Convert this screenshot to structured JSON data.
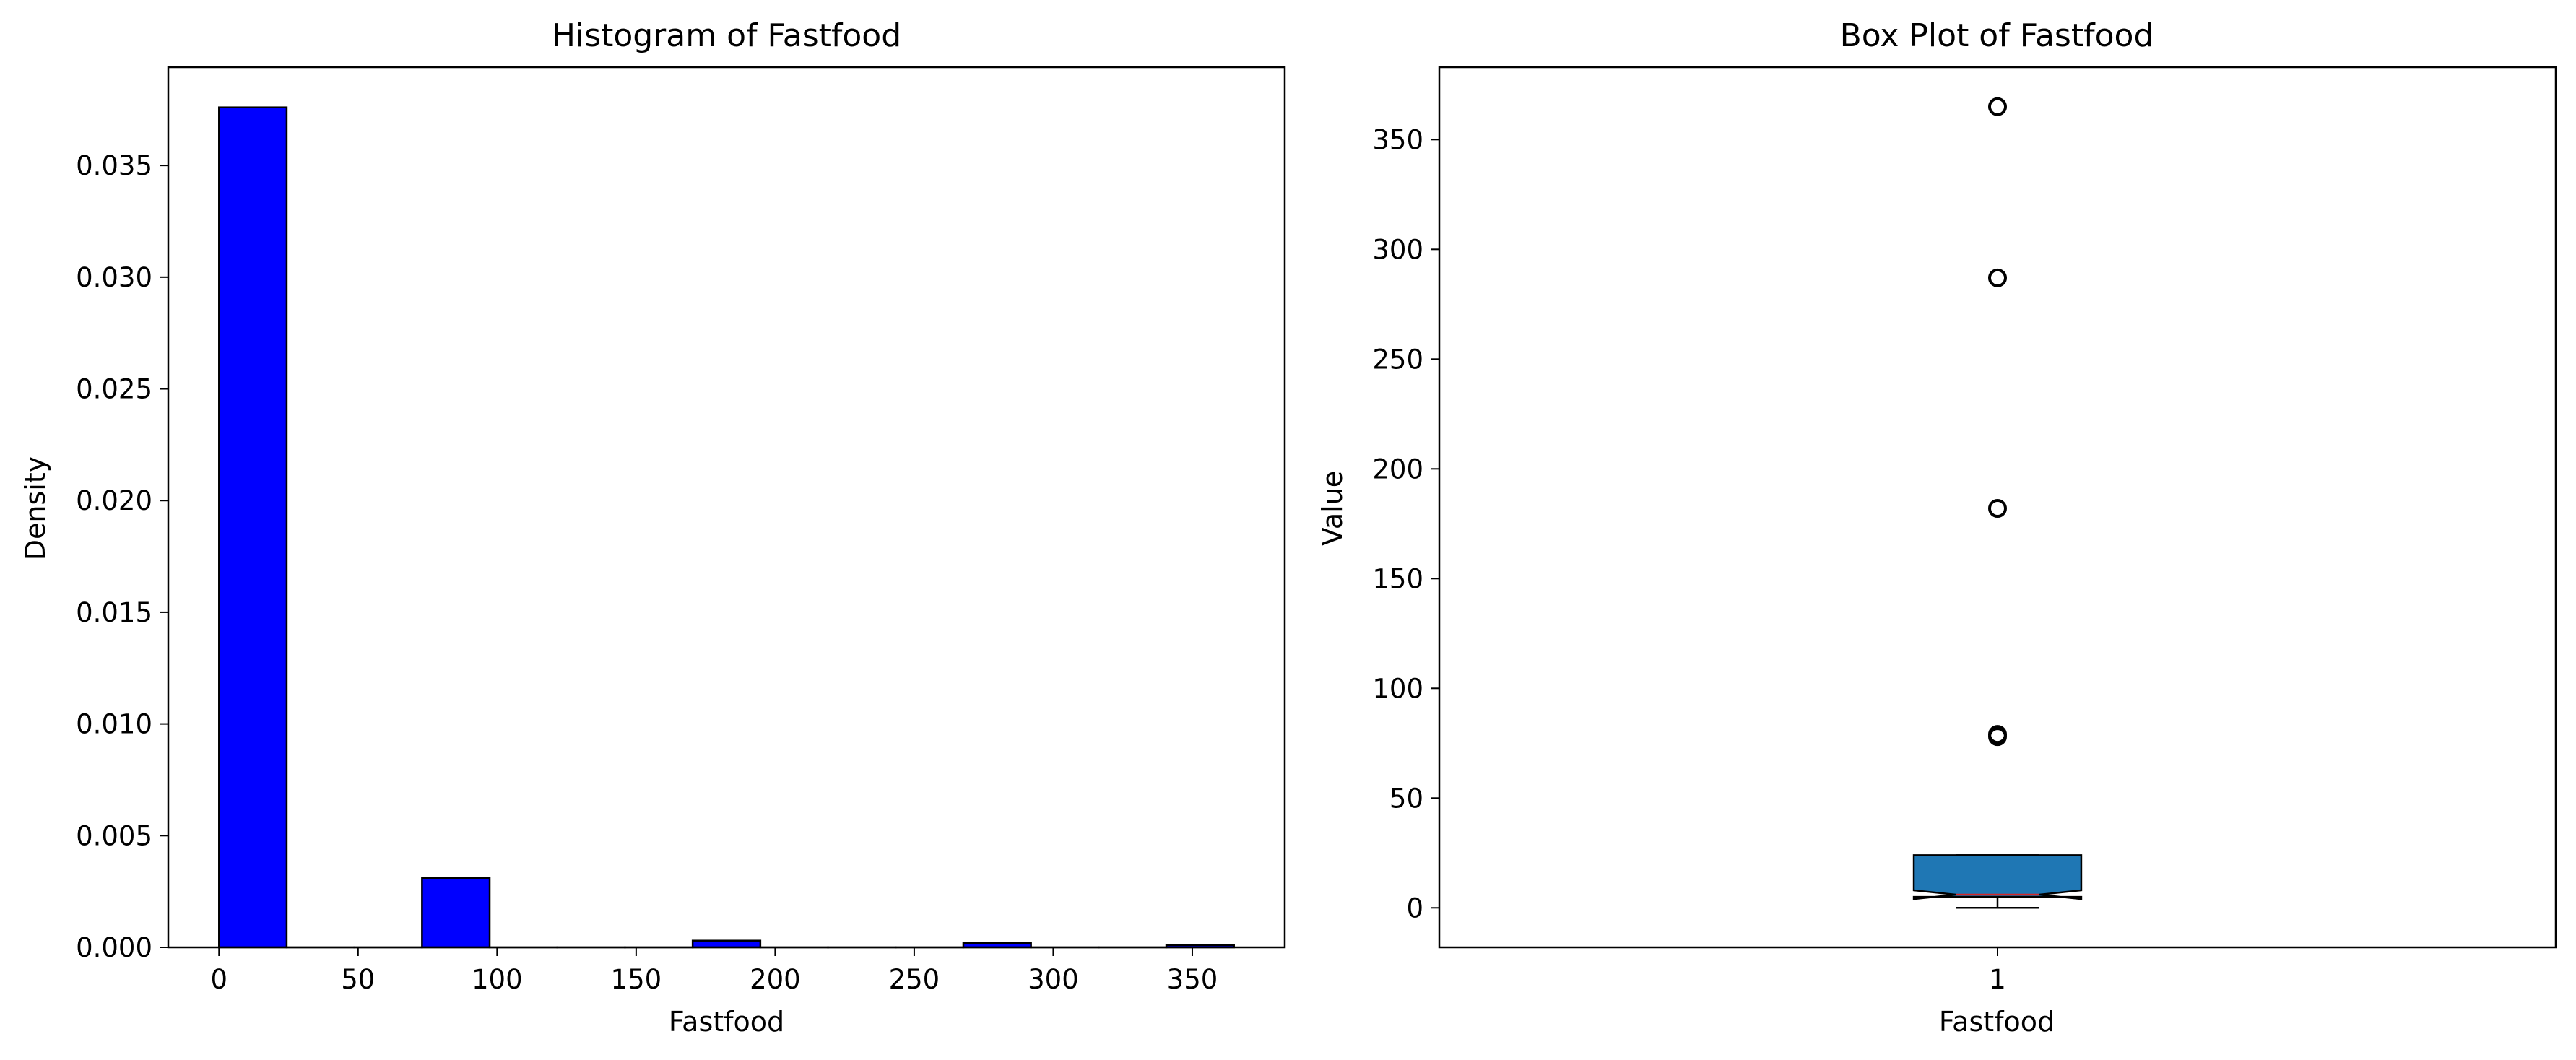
{
  "chart_data": [
    {
      "type": "histogram",
      "title": "Histogram of Fastfood",
      "xlabel": "Fastfood",
      "ylabel": "Density",
      "xlim": [
        -18.25,
        383.25
      ],
      "ylim": [
        0,
        0.0394
      ],
      "xticks": [
        0,
        50,
        100,
        150,
        200,
        250,
        300,
        350
      ],
      "xtick_labels": [
        "0",
        "50",
        "100",
        "150",
        "200",
        "250",
        "300",
        "350"
      ],
      "yticks": [
        0,
        0.005,
        0.01,
        0.015,
        0.02,
        0.025,
        0.03,
        0.035
      ],
      "ytick_labels": [
        "0.000",
        "0.005",
        "0.010",
        "0.015",
        "0.020",
        "0.025",
        "0.030",
        "0.035"
      ],
      "bin_edges": [
        0,
        24.33,
        48.67,
        73,
        97.33,
        121.67,
        146,
        170.33,
        194.67,
        219,
        243.33,
        267.67,
        292,
        316.33,
        340.67,
        365
      ],
      "values": [
        0.0376,
        0,
        0,
        0.0031,
        0,
        0,
        0,
        0.0003,
        0,
        0,
        0,
        0.0002,
        0,
        0,
        0.0001
      ],
      "bar_color": "#0000ff",
      "edge_color": "#000000"
    },
    {
      "type": "box",
      "title": "Box Plot of Fastfood",
      "xlabel": "Fastfood",
      "ylabel": "Value",
      "categories": [
        "1"
      ],
      "ylim": [
        -18,
        383
      ],
      "yticks": [
        0,
        50,
        100,
        150,
        200,
        250,
        300,
        350
      ],
      "ytick_labels": [
        "0",
        "50",
        "100",
        "150",
        "200",
        "250",
        "300",
        "350"
      ],
      "notched": true,
      "box": {
        "whisker_low": 0,
        "q1": 5,
        "median": 6,
        "q3": 24,
        "whisker_high": 24,
        "notch_low": 4,
        "notch_high": 8,
        "outliers": [
          78,
          79,
          182,
          287,
          365
        ]
      },
      "box_color": "#1f77b4",
      "median_color": "#d62728"
    }
  ]
}
